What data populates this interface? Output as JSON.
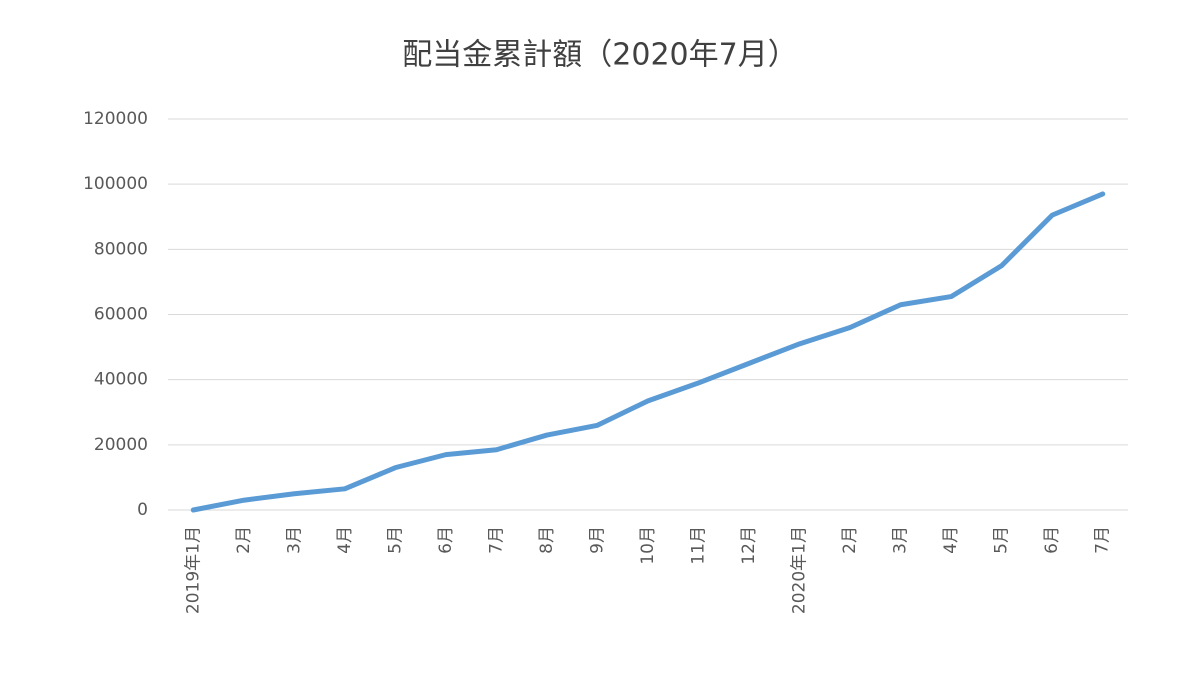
{
  "chart_data": {
    "type": "line",
    "title": "配当金累計額（2020年7月）",
    "categories": [
      "2019年1月",
      "2月",
      "3月",
      "4月",
      "5月",
      "6月",
      "7月",
      "8月",
      "9月",
      "10月",
      "11月",
      "12月",
      "2020年1月",
      "2月",
      "3月",
      "4月",
      "5月",
      "6月",
      "7月"
    ],
    "series": [
      {
        "name": "配当金累計額",
        "color": "#5b9bd5",
        "values": [
          0,
          3000,
          5000,
          6500,
          13000,
          17000,
          18500,
          23000,
          26000,
          33500,
          39000,
          45000,
          51000,
          56000,
          63000,
          65500,
          75000,
          90500,
          97000
        ]
      }
    ],
    "ylim": [
      0,
      120000
    ],
    "yticks": [
      0,
      20000,
      40000,
      60000,
      80000,
      100000,
      120000
    ],
    "grid": true
  }
}
